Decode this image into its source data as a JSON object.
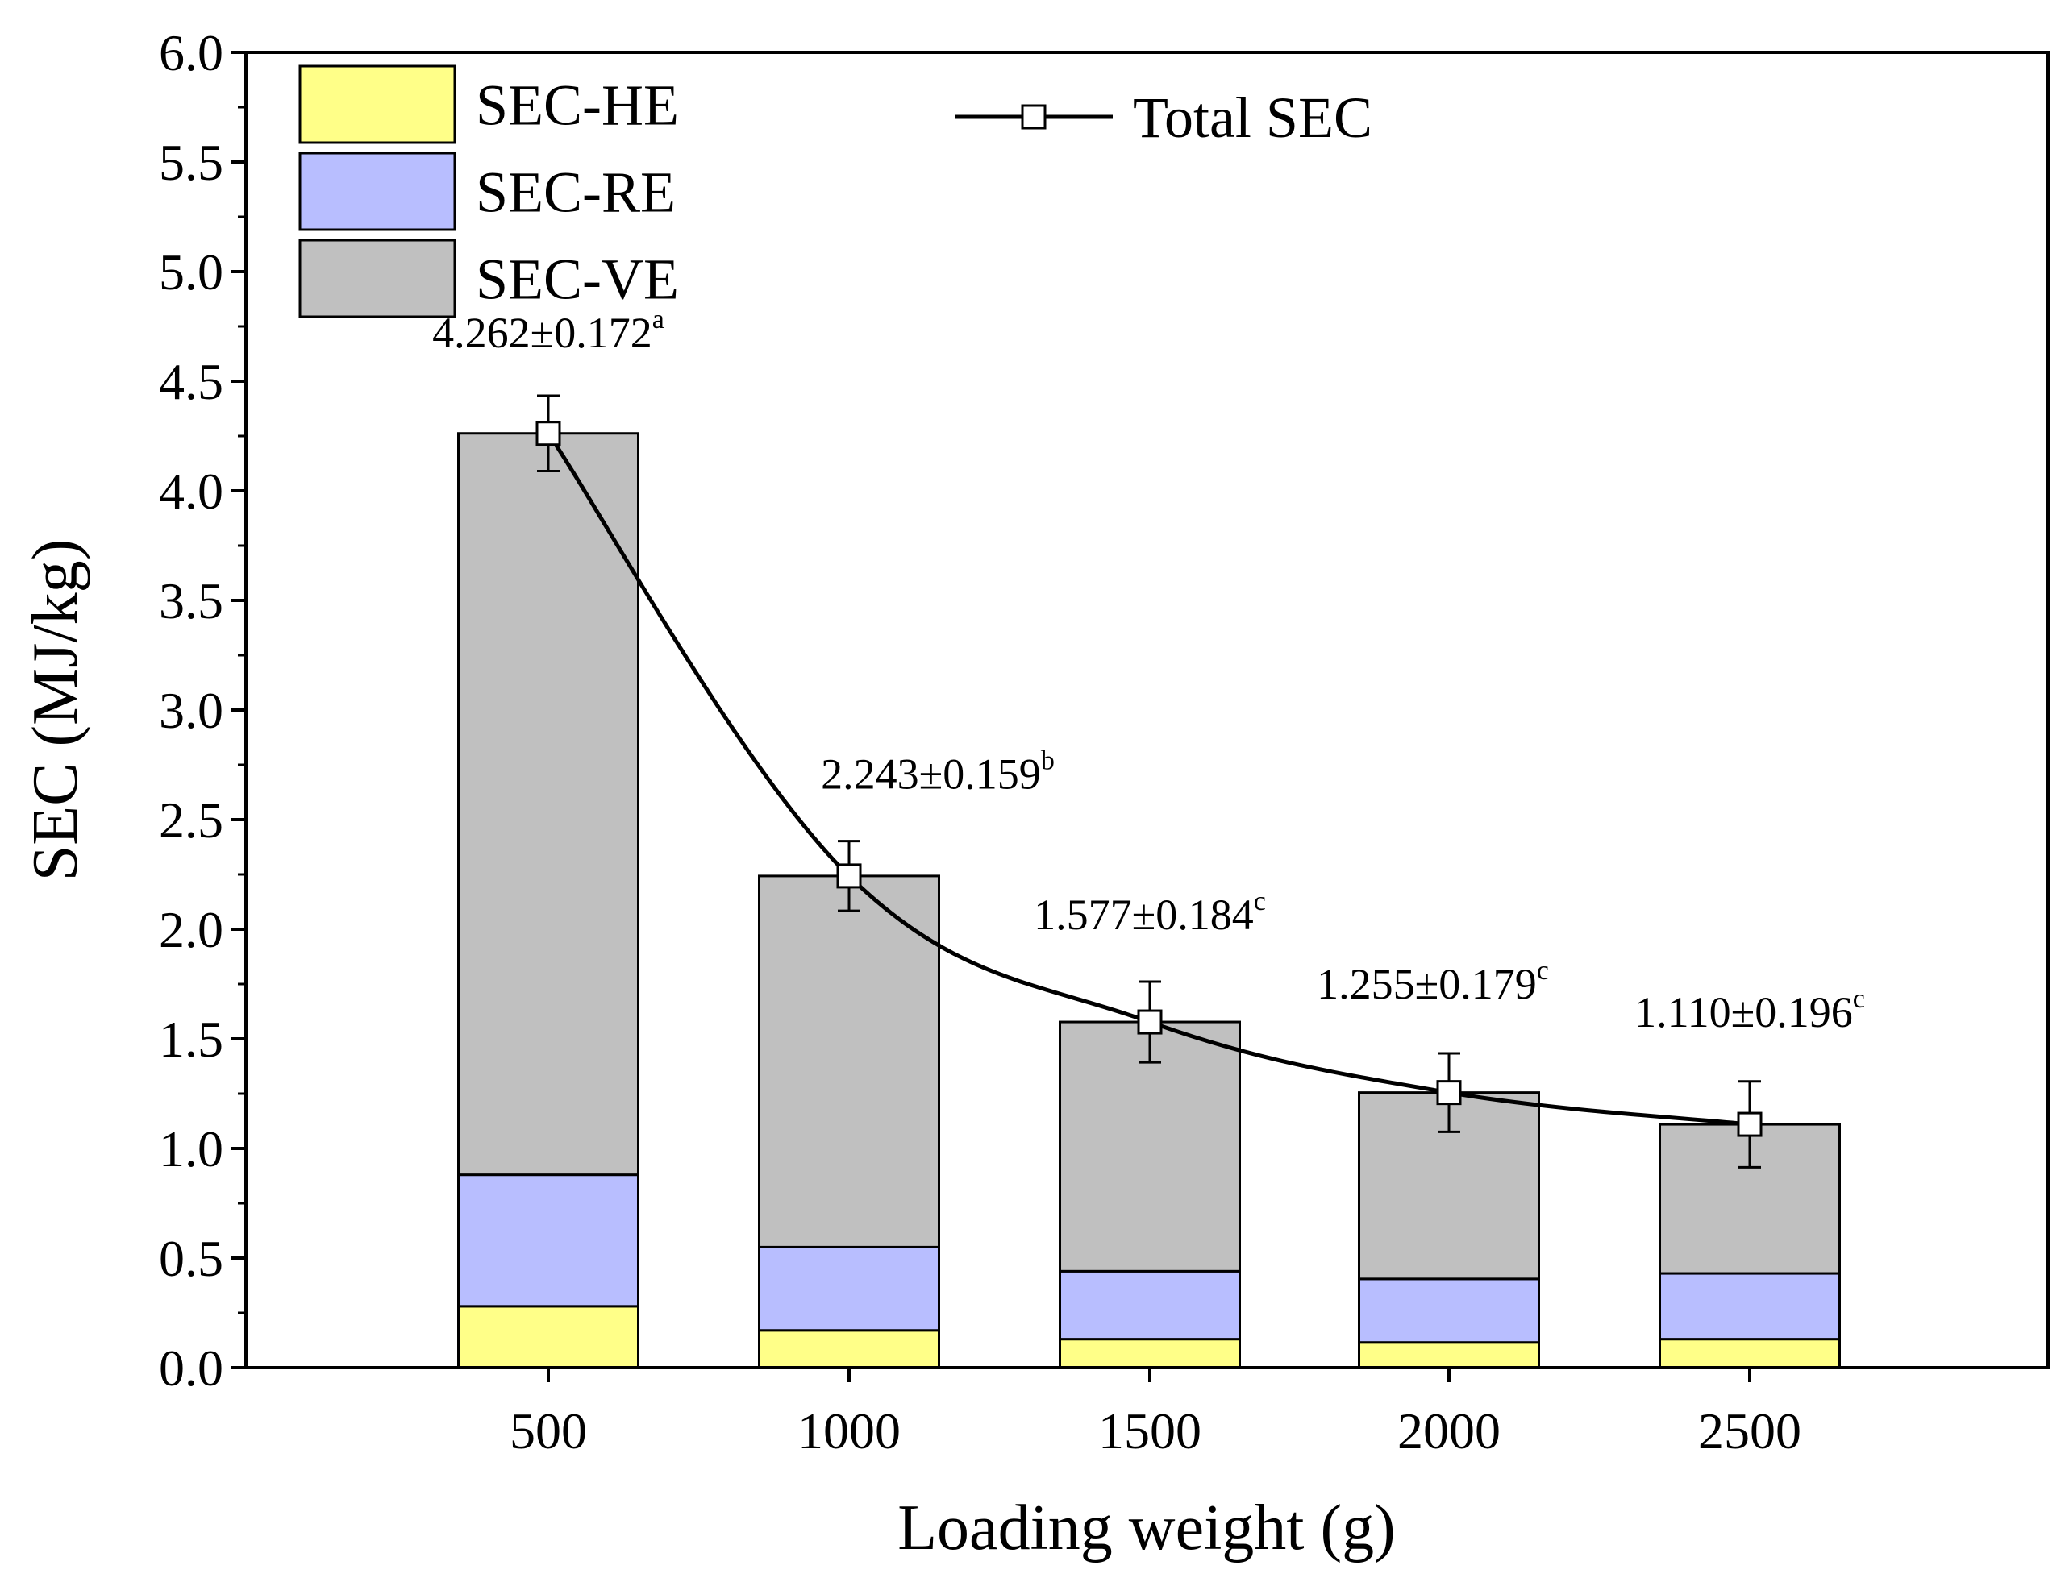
{
  "chart_data": {
    "type": "bar",
    "stacked": true,
    "title": "",
    "xlabel": "Loading weight (g)",
    "ylabel": "SEC (MJ/kg)",
    "ylim": [
      0,
      6
    ],
    "yticks": [
      "0.0",
      "0.5",
      "1.0",
      "1.5",
      "2.0",
      "2.5",
      "3.0",
      "3.5",
      "4.0",
      "4.5",
      "5.0",
      "5.5",
      "6.0"
    ],
    "categories": [
      "500",
      "1000",
      "1500",
      "2000",
      "2500"
    ],
    "series": [
      {
        "name": "SEC-HE",
        "color": "#FFFF88",
        "values": [
          0.28,
          0.17,
          0.13,
          0.115,
          0.13
        ]
      },
      {
        "name": "SEC-RE",
        "color": "#B8BEFF",
        "values": [
          0.6,
          0.38,
          0.31,
          0.29,
          0.3
        ]
      },
      {
        "name": "SEC-VE",
        "color": "#C0C0C0",
        "values": [
          3.382,
          1.693,
          1.137,
          0.85,
          0.68
        ]
      }
    ],
    "total": {
      "name": "Total SEC",
      "values": [
        4.262,
        2.243,
        1.577,
        1.255,
        1.11
      ],
      "errors": [
        0.172,
        0.159,
        0.184,
        0.179,
        0.196
      ],
      "labels": [
        "4.262±0.172",
        "2.243±0.159",
        "1.577±0.184",
        "1.255±0.179",
        "1.110±0.196"
      ],
      "significance": [
        "a",
        "b",
        "c",
        "c",
        "c"
      ]
    },
    "legend_position": "top-left"
  }
}
